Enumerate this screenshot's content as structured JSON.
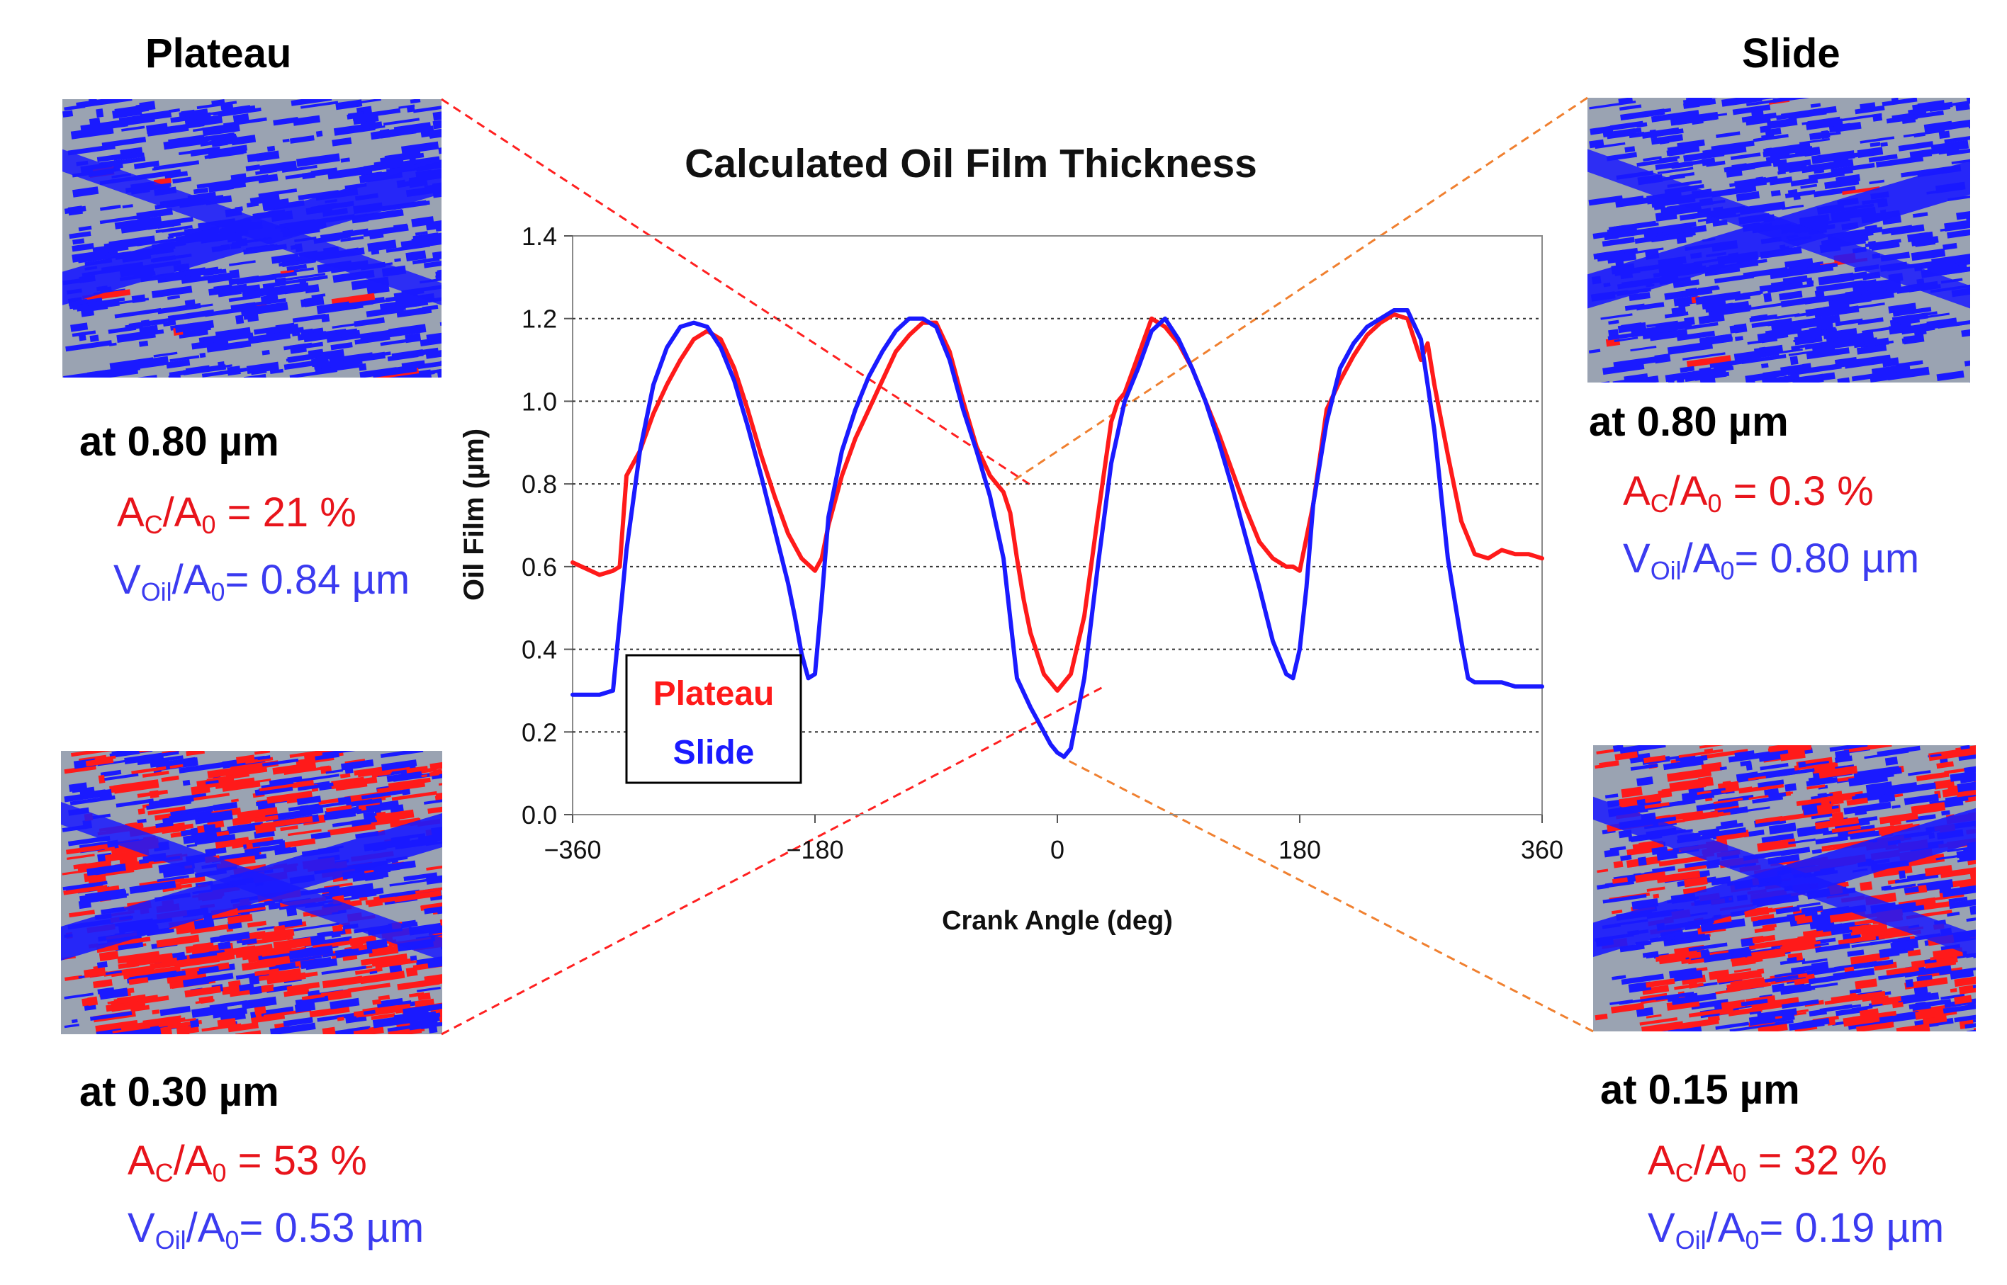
{
  "colors": {
    "plateau": "#ff1a1a",
    "slide": "#1a1aff",
    "caption_red": "#e8141b",
    "caption_blue": "#3b3bf0",
    "grey": "#9aa3b2",
    "link_red": "#ff2020",
    "link_orange": "#f08030"
  },
  "panels": {
    "plateau_title": "Plateau",
    "slide_title": "Slide"
  },
  "captions": {
    "tl": {
      "head": "at 0.80 µm",
      "ac_pre": "A",
      "ac_sub1": "C",
      "ac_mid": "/A",
      "ac_sub2": "0",
      "ac_val": " = 21 %",
      "v_pre": "V",
      "v_sub1": "Oil",
      "v_mid": "/A",
      "v_sub2": "0",
      "v_val": "= 0.84 µm"
    },
    "bl": {
      "head": "at 0.30 µm",
      "ac_pre": "A",
      "ac_sub1": "C",
      "ac_mid": "/A",
      "ac_sub2": "0",
      "ac_val": " = 53 %",
      "v_pre": "V",
      "v_sub1": "Oil",
      "v_mid": "/A",
      "v_sub2": "0",
      "v_val": "= 0.53 µm"
    },
    "tr": {
      "head": "at 0.80 µm",
      "ac_pre": "A",
      "ac_sub1": "C",
      "ac_mid": "/A",
      "ac_sub2": "0",
      "ac_val": " = 0.3 %",
      "v_pre": "V",
      "v_sub1": "Oil",
      "v_mid": "/A",
      "v_sub2": "0",
      "v_val": "= 0.80 µm"
    },
    "br": {
      "head": "at 0.15 µm",
      "ac_pre": "A",
      "ac_sub1": "C",
      "ac_mid": "/A",
      "ac_sub2": "0",
      "ac_val": " = 32 %",
      "v_pre": "V",
      "v_sub1": "Oil",
      "v_mid": "/A",
      "v_sub2": "0",
      "v_val": "= 0.19 µm"
    }
  },
  "chart_data": {
    "type": "line",
    "title": "Calculated Oil Film Thickness",
    "xlabel": "Crank Angle (deg)",
    "ylabel": "Oil Film (µm)",
    "xlim": [
      -360,
      360
    ],
    "ylim": [
      0,
      1.4
    ],
    "xticks": [
      -360,
      -180,
      0,
      180,
      360
    ],
    "xtick_labels": [
      "−360",
      "−180",
      "0",
      "180",
      "360"
    ],
    "yticks": [
      0.0,
      0.2,
      0.4,
      0.6,
      0.8,
      1.0,
      1.2,
      1.4
    ],
    "ytick_labels": [
      "0.0",
      "0.2",
      "0.4",
      "0.6",
      "0.8",
      "1.0",
      "1.2",
      "1.4"
    ],
    "grid": "horizontal dotted",
    "legend": {
      "position": "lower-left",
      "entries": [
        "Plateau",
        "Slide"
      ]
    },
    "series": [
      {
        "name": "Plateau",
        "color": "#ff1a1a",
        "x": [
          -360,
          -340,
          -330,
          -325,
          -320,
          -310,
          -300,
          -290,
          -280,
          -270,
          -260,
          -250,
          -240,
          -230,
          -220,
          -210,
          -200,
          -190,
          -180,
          -175,
          -170,
          -160,
          -150,
          -140,
          -130,
          -120,
          -110,
          -100,
          -90,
          -80,
          -70,
          -60,
          -50,
          -40,
          -35,
          -30,
          -25,
          -20,
          -10,
          0,
          10,
          20,
          30,
          40,
          45,
          50,
          60,
          70,
          80,
          90,
          100,
          110,
          120,
          130,
          140,
          150,
          160,
          170,
          175,
          180,
          190,
          200,
          210,
          220,
          230,
          240,
          250,
          260,
          270,
          275,
          280,
          290,
          300,
          310,
          320,
          330,
          340,
          350,
          360
        ],
        "y": [
          0.61,
          0.58,
          0.59,
          0.6,
          0.82,
          0.88,
          0.97,
          1.04,
          1.1,
          1.15,
          1.17,
          1.15,
          1.08,
          0.98,
          0.87,
          0.77,
          0.68,
          0.62,
          0.59,
          0.62,
          0.7,
          0.82,
          0.91,
          0.98,
          1.05,
          1.12,
          1.16,
          1.19,
          1.19,
          1.12,
          1.0,
          0.89,
          0.82,
          0.78,
          0.73,
          0.62,
          0.52,
          0.44,
          0.34,
          0.3,
          0.34,
          0.48,
          0.72,
          0.95,
          1.0,
          1.02,
          1.11,
          1.2,
          1.18,
          1.14,
          1.08,
          1.0,
          0.92,
          0.83,
          0.74,
          0.66,
          0.62,
          0.6,
          0.6,
          0.59,
          0.75,
          0.98,
          1.05,
          1.11,
          1.16,
          1.19,
          1.21,
          1.2,
          1.1,
          1.14,
          1.04,
          0.87,
          0.71,
          0.63,
          0.62,
          0.64,
          0.63,
          0.63,
          0.62
        ]
      },
      {
        "name": "Slide",
        "color": "#1a1aff",
        "x": [
          -360,
          -340,
          -330,
          -320,
          -310,
          -300,
          -290,
          -280,
          -270,
          -260,
          -250,
          -240,
          -230,
          -220,
          -210,
          -200,
          -195,
          -190,
          -185,
          -180,
          -175,
          -170,
          -160,
          -150,
          -140,
          -130,
          -120,
          -110,
          -100,
          -90,
          -80,
          -70,
          -60,
          -50,
          -40,
          -30,
          -20,
          -10,
          -5,
          0,
          5,
          10,
          20,
          30,
          40,
          50,
          60,
          70,
          80,
          90,
          100,
          110,
          120,
          130,
          140,
          150,
          160,
          170,
          175,
          180,
          185,
          190,
          200,
          210,
          220,
          230,
          240,
          250,
          260,
          270,
          275,
          280,
          290,
          300,
          305,
          310,
          320,
          330,
          340,
          350,
          360
        ],
        "y": [
          0.29,
          0.29,
          0.3,
          0.64,
          0.88,
          1.04,
          1.13,
          1.18,
          1.19,
          1.18,
          1.13,
          1.05,
          0.94,
          0.82,
          0.69,
          0.56,
          0.48,
          0.39,
          0.33,
          0.34,
          0.52,
          0.72,
          0.88,
          0.98,
          1.06,
          1.12,
          1.17,
          1.2,
          1.2,
          1.18,
          1.1,
          0.98,
          0.88,
          0.77,
          0.62,
          0.33,
          0.26,
          0.2,
          0.17,
          0.15,
          0.14,
          0.16,
          0.33,
          0.6,
          0.85,
          1.0,
          1.08,
          1.17,
          1.2,
          1.15,
          1.08,
          1.0,
          0.9,
          0.79,
          0.67,
          0.55,
          0.42,
          0.34,
          0.33,
          0.4,
          0.55,
          0.75,
          0.95,
          1.08,
          1.14,
          1.18,
          1.2,
          1.22,
          1.22,
          1.15,
          1.04,
          0.93,
          0.62,
          0.42,
          0.33,
          0.32,
          0.32,
          0.32,
          0.31,
          0.31,
          0.31
        ]
      }
    ]
  }
}
